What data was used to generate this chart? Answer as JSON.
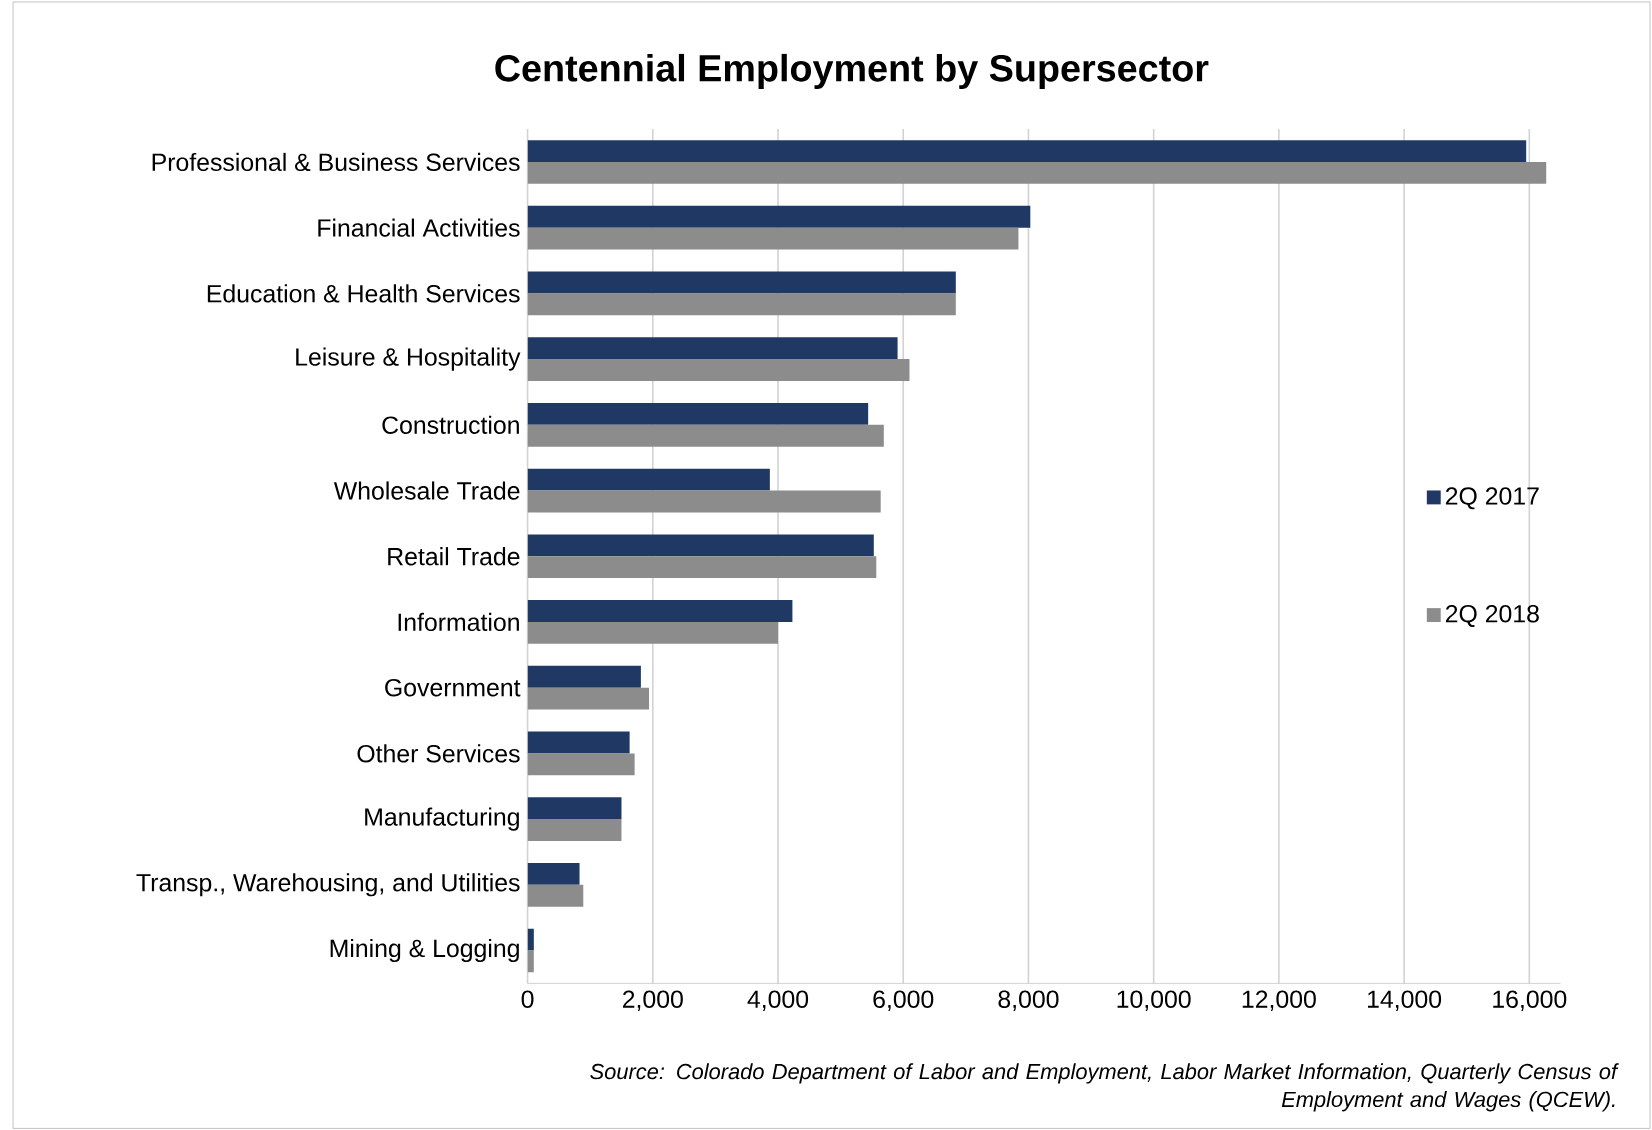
{
  "chart_data": {
    "type": "bar",
    "orientation": "horizontal",
    "title": "Centennial Employment by Supersector",
    "categories": [
      "Professional & Business Services",
      "Financial Activities",
      "Education & Health Services",
      "Leisure & Hospitality",
      "Construction",
      "Wholesale Trade",
      "Retail Trade",
      "Information",
      "Government",
      "Other Services",
      "Manufacturing",
      "Transp., Warehousing, and Utilities",
      "Mining & Logging"
    ],
    "series": [
      {
        "name": "2Q 2017",
        "color": "#1f3864",
        "values": [
          15950,
          8030,
          6840,
          5910,
          5440,
          3870,
          5530,
          4230,
          1810,
          1630,
          1500,
          830,
          100
        ]
      },
      {
        "name": "2Q 2018",
        "color": "#8c8c8c",
        "values": [
          16270,
          7840,
          6840,
          6100,
          5690,
          5640,
          5570,
          4000,
          1940,
          1710,
          1500,
          890,
          100
        ]
      }
    ],
    "xlim": [
      0,
      16500
    ],
    "xticks": [
      {
        "value": 0,
        "label": "0"
      },
      {
        "value": 2000,
        "label": "2,000"
      },
      {
        "value": 4000,
        "label": "4,000"
      },
      {
        "value": 6000,
        "label": "6,000"
      },
      {
        "value": 8000,
        "label": "8,000"
      },
      {
        "value": 10000,
        "label": "10,000"
      },
      {
        "value": 12000,
        "label": "12,000"
      },
      {
        "value": 14000,
        "label": "14,000"
      },
      {
        "value": 16000,
        "label": "16,000"
      }
    ],
    "grid": "x",
    "legend": "right",
    "annotations": [
      "Source: Colorado Department of Labor and Employment, Labor Market Information, Quarterly Census of Employment and Wages (QCEW)."
    ]
  }
}
